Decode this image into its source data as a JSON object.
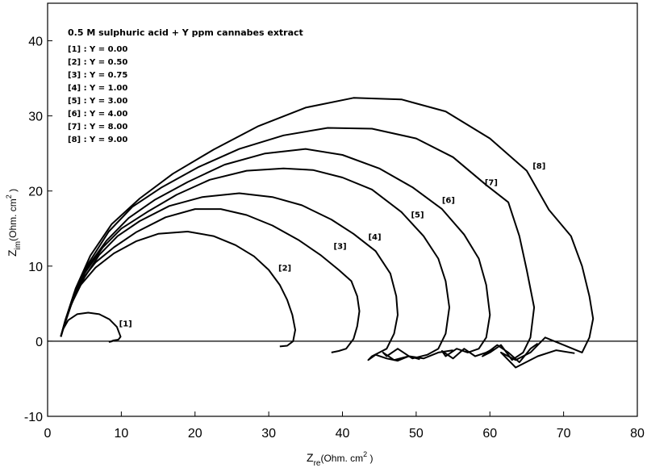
{
  "chart_data": {
    "type": "line",
    "title": "",
    "legend_title": "0.5 M sulphuric acid + Y ppm cannabes extract",
    "legend_placement": "top-left",
    "legend": [
      "[1] : Y = 0.00",
      "[2] : Y = 0.50",
      "[3] : Y = 0.75",
      "[4] : Y = 1.00",
      "[5] : Y = 3.00",
      "[6] : Y = 4.00",
      "[7] : Y = 8.00",
      "[8] : Y = 9.00"
    ],
    "xlabel": {
      "main": "Z",
      "sub": "re",
      "unit": "(Ohm. cm",
      "sup": "2",
      "close": " )"
    },
    "ylabel": {
      "main": "Z",
      "sub": "im",
      "unit": "(Ohm. cm",
      "sup": "2",
      "close": " )"
    },
    "xlim": [
      0,
      80
    ],
    "ylim": [
      -10,
      45
    ],
    "xticks": [
      0,
      10,
      20,
      30,
      40,
      50,
      60,
      70,
      80
    ],
    "yticks": [
      -10,
      0,
      10,
      20,
      30,
      40
    ],
    "grid": false,
    "zero_line": true,
    "series": [
      {
        "name": "[1]",
        "label": "[1]",
        "label_at": [
          9.7,
          2.0
        ],
        "x": [
          1.8,
          2.1,
          2.8,
          4.0,
          5.5,
          7.0,
          8.4,
          9.4,
          9.9,
          9.6,
          8.9,
          8.4,
          8.8
        ],
        "y": [
          0.6,
          1.6,
          2.8,
          3.6,
          3.8,
          3.6,
          2.9,
          1.9,
          0.6,
          0.2,
          0.1,
          -0.1,
          0.0
        ]
      },
      {
        "name": "[2]",
        "label": "[2]",
        "label_at": [
          31.3,
          9.4
        ],
        "x": [
          1.8,
          2.2,
          3.0,
          4.5,
          6.5,
          9.0,
          12.0,
          15.0,
          19.0,
          22.5,
          25.5,
          28.0,
          30.0,
          31.5,
          32.5,
          33.2,
          33.6,
          33.3,
          32.5,
          31.5
        ],
        "y": [
          0.6,
          2.0,
          4.5,
          7.5,
          9.8,
          11.7,
          13.3,
          14.3,
          14.6,
          14.0,
          12.8,
          11.3,
          9.5,
          7.5,
          5.5,
          3.5,
          1.5,
          0.0,
          -0.6,
          -0.7
        ]
      },
      {
        "name": "[3]",
        "label": "[3]",
        "label_at": [
          38.8,
          12.3
        ],
        "x": [
          1.8,
          2.2,
          3.2,
          4.5,
          6.5,
          9.0,
          12.0,
          16.0,
          20.0,
          23.5,
          27.0,
          30.5,
          34.0,
          37.0,
          39.5,
          41.2,
          42.0,
          42.3,
          42.0,
          41.5,
          40.5,
          39.5,
          38.5
        ],
        "y": [
          0.6,
          2.0,
          4.8,
          8.0,
          10.5,
          12.5,
          14.5,
          16.5,
          17.6,
          17.6,
          16.8,
          15.4,
          13.5,
          11.5,
          9.5,
          8.0,
          6.0,
          4.0,
          2.0,
          0.3,
          -1.0,
          -1.3,
          -1.5
        ]
      },
      {
        "name": "[4]",
        "label": "[4]",
        "label_at": [
          43.5,
          13.5
        ],
        "x": [
          1.8,
          2.3,
          3.3,
          5.0,
          7.0,
          9.5,
          12.5,
          16.5,
          21.0,
          26.0,
          30.5,
          34.5,
          38.5,
          41.5,
          44.5,
          46.5,
          47.3,
          47.5,
          47.0,
          46.0,
          45.0,
          44.0,
          43.5,
          44.5,
          46.0,
          47.5,
          49.0,
          50.5
        ],
        "y": [
          0.6,
          2.2,
          5.2,
          8.5,
          11.5,
          14.0,
          16.0,
          18.0,
          19.2,
          19.7,
          19.2,
          18.1,
          16.2,
          14.3,
          12.0,
          9.0,
          6.0,
          3.5,
          1.0,
          -1.0,
          -1.5,
          -2.0,
          -2.5,
          -1.8,
          -2.3,
          -2.6,
          -2.0,
          -2.4
        ]
      },
      {
        "name": "[5]",
        "label": "[5]",
        "label_at": [
          49.3,
          16.5
        ],
        "x": [
          1.8,
          2.3,
          3.4,
          5.0,
          7.5,
          10.0,
          13.5,
          17.5,
          22.0,
          27.0,
          32.0,
          36.0,
          40.0,
          44.0,
          48.0,
          51.0,
          53.0,
          54.0,
          54.5,
          54.0,
          53.0,
          51.5,
          49.5,
          47.5,
          46.0,
          45.5,
          47.0,
          49.0,
          51.0,
          53.0,
          55.0
        ],
        "y": [
          0.6,
          2.4,
          5.5,
          9.0,
          12.5,
          15.0,
          17.2,
          19.5,
          21.5,
          22.7,
          23.0,
          22.8,
          21.8,
          20.2,
          17.2,
          14.0,
          11.0,
          8.0,
          4.5,
          1.0,
          -1.0,
          -1.8,
          -2.3,
          -1.0,
          -2.0,
          -1.5,
          -2.5,
          -2.0,
          -2.3,
          -1.5,
          -1.2
        ]
      },
      {
        "name": "[6]",
        "label": "[6]",
        "label_at": [
          53.5,
          18.4
        ],
        "x": [
          1.8,
          2.4,
          3.5,
          5.2,
          8.0,
          11.0,
          14.5,
          19.0,
          24.0,
          29.5,
          35.0,
          40.0,
          45.0,
          49.5,
          53.5,
          56.5,
          58.5,
          59.5,
          60.0,
          59.5,
          58.5,
          57.0,
          55.5,
          54.0,
          53.5,
          55.0,
          56.5,
          58.0,
          59.5,
          60.5
        ],
        "y": [
          0.6,
          2.6,
          5.9,
          9.6,
          13.4,
          16.4,
          18.8,
          21.2,
          23.5,
          25.0,
          25.6,
          24.8,
          23.0,
          20.5,
          17.6,
          14.2,
          11.0,
          7.5,
          3.5,
          0.5,
          -1.0,
          -1.5,
          -1.0,
          -2.0,
          -1.3,
          -2.3,
          -1.0,
          -2.0,
          -1.5,
          -1.0
        ]
      },
      {
        "name": "[7]",
        "label": "[7]",
        "label_at": [
          59.3,
          20.8
        ],
        "x": [
          1.8,
          2.4,
          3.6,
          5.5,
          8.3,
          11.5,
          15.5,
          20.5,
          26.0,
          32.0,
          38.0,
          44.0,
          50.0,
          55.0,
          59.5,
          62.5,
          64.0,
          65.0,
          66.0,
          65.5,
          64.5,
          63.0,
          61.5,
          60.0,
          59.0,
          61.0,
          62.5,
          64.0,
          65.5,
          66.5
        ],
        "y": [
          0.6,
          2.8,
          6.4,
          10.3,
          14.6,
          17.9,
          20.5,
          23.2,
          25.6,
          27.4,
          28.4,
          28.3,
          27.0,
          24.5,
          20.8,
          18.5,
          14.0,
          9.5,
          4.5,
          0.5,
          -1.5,
          -2.5,
          -0.5,
          -1.5,
          -2.0,
          -0.5,
          -1.5,
          -2.8,
          -1.0,
          -0.3
        ]
      },
      {
        "name": "[8]",
        "label": "[8]",
        "label_at": [
          65.8,
          23.0
        ],
        "x": [
          1.8,
          2.5,
          3.8,
          5.8,
          8.7,
          12.5,
          17.0,
          22.5,
          28.5,
          35.0,
          41.5,
          48.0,
          54.0,
          60.0,
          65.0,
          68.0,
          71.0,
          72.5,
          73.5,
          74.0,
          73.5,
          72.5,
          70.0,
          67.5,
          65.5,
          63.5,
          61.5,
          63.5,
          66.5,
          69.0,
          71.5
        ],
        "y": [
          0.6,
          3.0,
          7.0,
          11.4,
          15.6,
          19.0,
          22.3,
          25.5,
          28.6,
          31.1,
          32.4,
          32.2,
          30.6,
          27.0,
          22.7,
          17.5,
          14.0,
          10.0,
          6.0,
          3.0,
          0.5,
          -1.5,
          -0.5,
          0.5,
          -1.5,
          -2.5,
          -1.5,
          -3.5,
          -2.0,
          -1.2,
          -1.6
        ]
      }
    ]
  }
}
